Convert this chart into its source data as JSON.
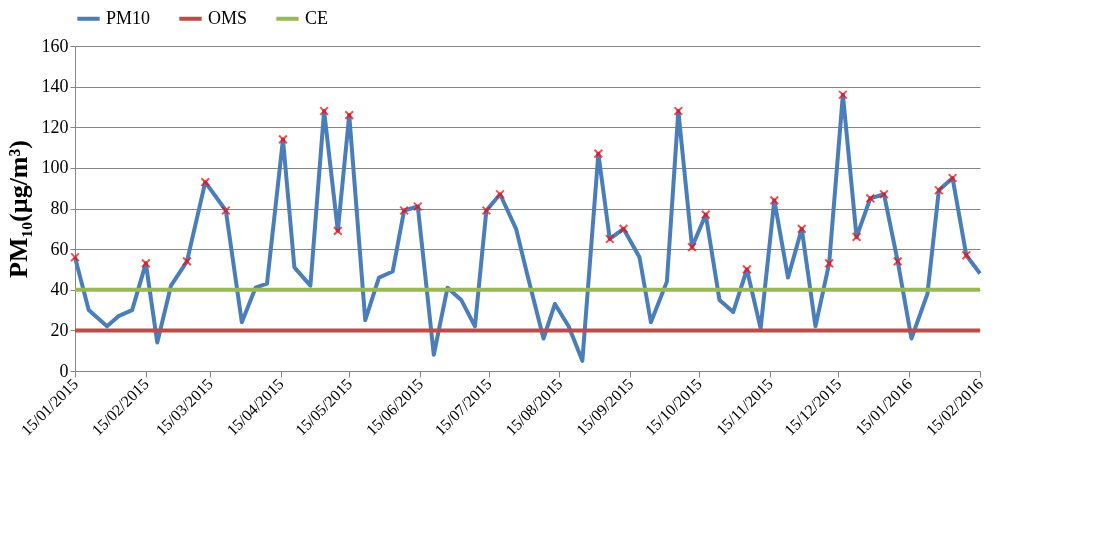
{
  "chart_data": {
    "type": "line",
    "ylabel": "PM₁₀(µg/m³)",
    "legend": "top",
    "grid": "y",
    "ylim": [
      0,
      160
    ],
    "yticks": [
      0,
      20,
      40,
      60,
      80,
      100,
      120,
      140,
      160
    ],
    "xlim": [
      "2015-01-15",
      "2016-02-15"
    ],
    "xticks": [
      {
        "value": "2015-01-15",
        "label": "15/01/2015"
      },
      {
        "value": "2015-02-15",
        "label": "15/02/2015"
      },
      {
        "value": "2015-03-15",
        "label": "15/03/2015"
      },
      {
        "value": "2015-04-15",
        "label": "15/04/2015"
      },
      {
        "value": "2015-05-15",
        "label": "15/05/2015"
      },
      {
        "value": "2015-06-15",
        "label": "15/06/2015"
      },
      {
        "value": "2015-07-15",
        "label": "15/07/2015"
      },
      {
        "value": "2015-08-15",
        "label": "15/08/2015"
      },
      {
        "value": "2015-09-15",
        "label": "15/09/2015"
      },
      {
        "value": "2015-10-15",
        "label": "15/10/2015"
      },
      {
        "value": "2015-11-15",
        "label": "15/11/2015"
      },
      {
        "value": "2015-12-15",
        "label": "15/12/2015"
      },
      {
        "value": "2016-01-15",
        "label": "15/01/2016"
      },
      {
        "value": "2016-02-15",
        "label": "15/02/2016"
      }
    ],
    "x": [
      "2015-01-15",
      "2015-01-21",
      "2015-01-29",
      "2015-02-03",
      "2015-02-09",
      "2015-02-15",
      "2015-02-20",
      "2015-02-26",
      "2015-03-05",
      "2015-03-13",
      "2015-03-22",
      "2015-03-29",
      "2015-04-04",
      "2015-04-09",
      "2015-04-16",
      "2015-04-21",
      "2015-04-28",
      "2015-05-04",
      "2015-05-10",
      "2015-05-15",
      "2015-05-22",
      "2015-05-28",
      "2015-06-03",
      "2015-06-08",
      "2015-06-14",
      "2015-06-21",
      "2015-06-27",
      "2015-07-03",
      "2015-07-09",
      "2015-07-14",
      "2015-07-20",
      "2015-07-27",
      "2015-08-01",
      "2015-08-08",
      "2015-08-13",
      "2015-08-19",
      "2015-08-25",
      "2015-09-01",
      "2015-09-06",
      "2015-09-12",
      "2015-09-19",
      "2015-09-24",
      "2015-10-01",
      "2015-10-06",
      "2015-10-12",
      "2015-10-18",
      "2015-10-24",
      "2015-10-30",
      "2015-11-05",
      "2015-11-11",
      "2015-11-17",
      "2015-11-23",
      "2015-11-29",
      "2015-12-05",
      "2015-12-11",
      "2015-12-17",
      "2015-12-23",
      "2015-12-29",
      "2016-01-04",
      "2016-01-10",
      "2016-01-16",
      "2016-01-23",
      "2016-01-28",
      "2016-02-03",
      "2016-02-09",
      "2016-02-15"
    ],
    "series": [
      {
        "name": "PM10",
        "color": "#4a7ebb",
        "values": [
          56,
          30,
          22,
          27,
          30,
          53,
          14,
          42,
          54,
          93,
          79,
          24,
          41,
          43,
          114,
          51,
          42,
          128,
          69,
          126,
          25,
          46,
          49,
          79,
          81,
          8,
          41,
          35,
          22,
          79,
          87,
          70,
          47,
          16,
          33,
          22,
          5,
          107,
          65,
          70,
          56,
          24,
          44,
          128,
          61,
          77,
          35,
          29,
          50,
          21,
          84,
          46,
          70,
          22,
          53,
          136,
          66,
          85,
          87,
          54,
          16,
          38,
          89,
          95,
          57,
          48
        ]
      },
      {
        "name": "OMS",
        "color": "#be4b48",
        "x": [
          "2015-01-15",
          "2016-02-15"
        ],
        "values": [
          20,
          20
        ]
      },
      {
        "name": "CE",
        "color": "#98b954",
        "x": [
          "2015-01-15",
          "2016-02-15"
        ],
        "values": [
          40,
          40
        ]
      },
      {
        "type": "scatter",
        "marker": "cross",
        "color": "#ff0000",
        "values": [
          56,
          null,
          null,
          null,
          null,
          53,
          null,
          null,
          54,
          93,
          79,
          null,
          null,
          null,
          114,
          null,
          null,
          128,
          69,
          126,
          null,
          null,
          null,
          79,
          81,
          null,
          null,
          null,
          null,
          79,
          87,
          null,
          null,
          null,
          null,
          null,
          null,
          107,
          65,
          70,
          null,
          null,
          null,
          128,
          61,
          77,
          null,
          null,
          50,
          null,
          84,
          null,
          70,
          null,
          53,
          136,
          66,
          85,
          87,
          54,
          null,
          null,
          89,
          95,
          57,
          null
        ]
      }
    ]
  }
}
